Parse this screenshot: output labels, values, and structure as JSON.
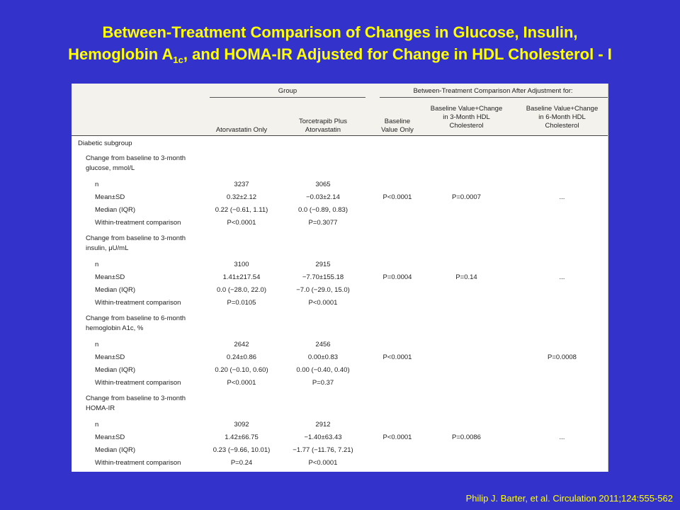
{
  "slide": {
    "title_line1": "Between-Treatment Comparison of Changes in Glucose, Insulin,",
    "title_line2_pre": "Hemoglobin A",
    "title_line2_sub": "1c",
    "title_line2_post": ", and HOMA-IR Adjusted for Change in HDL Cholesterol - I",
    "citation": "Philip J. Barter, et al. Circulation 2011;124:555-562"
  },
  "colors": {
    "background": "#3333cc",
    "title": "#ffff00",
    "table_header": "#f4f2ed"
  },
  "table": {
    "header": {
      "group": "Group",
      "between": "Between-Treatment Comparison After Adjustment for:",
      "col_ator": "Atorvastatin Only",
      "col_torc_1": "Torcetrapib Plus",
      "col_torc_2": "Atorvastatin",
      "col_base_1": "Baseline",
      "col_base_2": "Value Only",
      "col_3m_1": "Baseline Value+Change",
      "col_3m_2": "in 3-Month HDL",
      "col_3m_3": "Cholesterol",
      "col_6m_1": "Baseline Value+Change",
      "col_6m_2": "in 6-Month HDL",
      "col_6m_3": "Cholesterol"
    },
    "subgroup": "Diabetic subgroup",
    "sections": [
      {
        "label_1": "Change from baseline to 3-month",
        "label_2": "glucose, mmol/L",
        "n_label": "n",
        "n_a": "3237",
        "n_t": "3065",
        "mean_label": "Mean±SD",
        "mean_a": "0.32±2.12",
        "mean_t": "−0.03±2.14",
        "median_label": "Median (IQR)",
        "median_a": "0.22 (−0.61, 1.11)",
        "median_t": "0.0 (−0.89, 0.83)",
        "within_label": "Within-treatment comparison",
        "within_a": "P<0.0001",
        "within_t": "P=0.3077",
        "p_base": "P<0.0001",
        "p_3m": "P=0.0007",
        "p_6m": "..."
      },
      {
        "label_1": "Change from baseline to 3-month",
        "label_2": "insulin, μU/mL",
        "n_label": "n",
        "n_a": "3100",
        "n_t": "2915",
        "mean_label": "Mean±SD",
        "mean_a": "1.41±217.54",
        "mean_t": "−7.70±155.18",
        "median_label": "Median (IQR)",
        "median_a": "0.0 (−28.0, 22.0)",
        "median_t": "−7.0 (−29.0, 15.0)",
        "within_label": "Within-treatment comparison",
        "within_a": "P=0.0105",
        "within_t": "P<0.0001",
        "p_base": "P=0.0004",
        "p_3m": "P=0.14",
        "p_6m": "..."
      },
      {
        "label_1": "Change from baseline to 6-month",
        "label_2": "hemoglobin A1c, %",
        "n_label": "n",
        "n_a": "2642",
        "n_t": "2456",
        "mean_label": "Mean±SD",
        "mean_a": "0.24±0.86",
        "mean_t": "0.00±0.83",
        "median_label": "Median (IQR)",
        "median_a": "0.20 (−0.10, 0.60)",
        "median_t": "0.00 (−0.40, 0.40)",
        "within_label": "Within-treatment comparison",
        "within_a": "P<0.0001",
        "within_t": "P=0.37",
        "p_base": "P<0.0001",
        "p_3m": "",
        "p_6m": "P=0.0008"
      },
      {
        "label_1": "Change from baseline to 3-month",
        "label_2": "HOMA-IR",
        "n_label": "n",
        "n_a": "3092",
        "n_t": "2912",
        "mean_label": "Mean±SD",
        "mean_a": "1.42±66.75",
        "mean_t": "−1.40±63.43",
        "median_label": "Median (IQR)",
        "median_a": "0.23 (−9.66, 10.01)",
        "median_t": "−1.77 (−11.76, 7.21)",
        "within_label": "Within-treatment comparison",
        "within_a": "P=0.24",
        "within_t": "P<0.0001",
        "p_base": "P<0.0001",
        "p_3m": "P=0.0086",
        "p_6m": "..."
      }
    ]
  }
}
